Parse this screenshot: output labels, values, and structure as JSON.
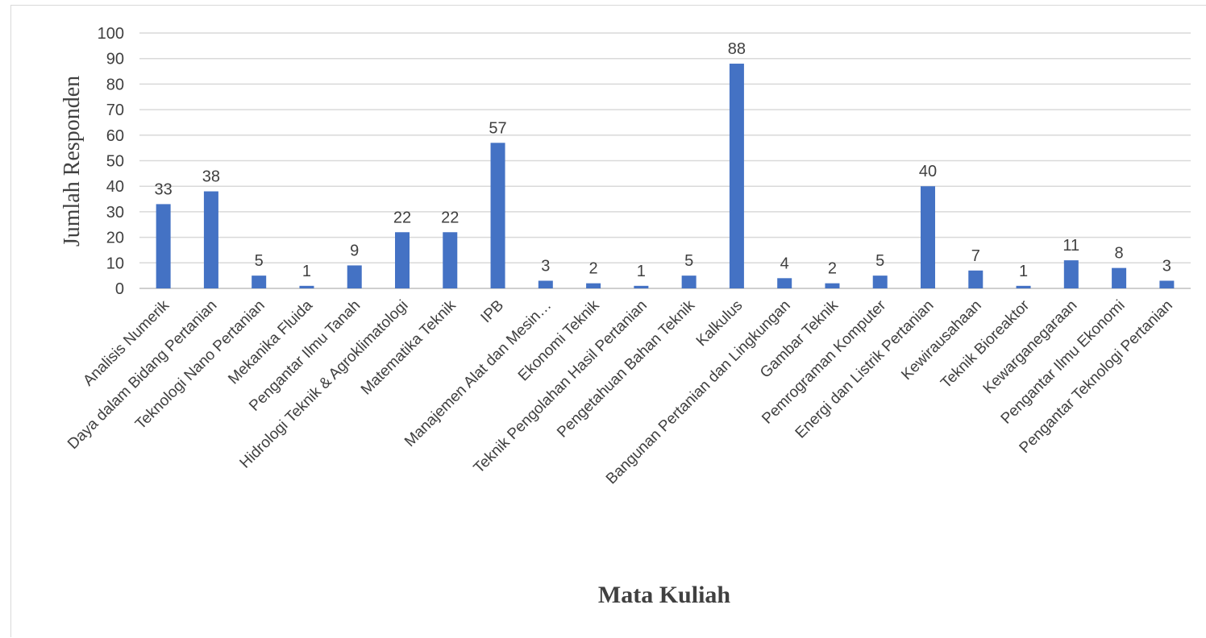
{
  "chart_data": {
    "type": "bar",
    "title": "",
    "xlabel": "Mata Kuliah",
    "ylabel": "Jumlah Responden",
    "ylim": [
      0,
      100
    ],
    "yticks": [
      0,
      10,
      20,
      30,
      40,
      50,
      60,
      70,
      80,
      90,
      100
    ],
    "grid": true,
    "legend": "none",
    "colors": {
      "bar": "#4472c4",
      "grid": "#d9d9d9",
      "text": "#404040"
    },
    "categories": [
      "Analisis Numerik",
      "Daya dalam Bidang Pertanian",
      "Teknologi Nano Pertanian",
      "Mekanika Fluida",
      "Pengantar Ilmu Tanah",
      "Hidrologi Teknik & Agroklimatologi",
      "Matematika Teknik",
      "IPB",
      "Manajemen Alat dan Mesin…",
      "Ekonomi Teknik",
      "Teknik Pengolahan Hasil Pertanian",
      "Pengetahuan Bahan Teknik",
      "Kalkulus",
      "Bangunan Pertanian dan Lingkungan",
      "Gambar Teknik",
      "Pemrograman Komputer",
      "Energi dan Listrik Pertanian",
      "Kewirausahaan",
      "Teknik Bioreaktor",
      "Kewarganegaraan",
      "Pengantar Ilmu Ekonomi",
      "Pengantar Teknologi Pertanian"
    ],
    "values": [
      33,
      38,
      5,
      1,
      9,
      22,
      22,
      57,
      3,
      2,
      1,
      5,
      88,
      4,
      2,
      5,
      40,
      7,
      1,
      11,
      8,
      3
    ]
  }
}
